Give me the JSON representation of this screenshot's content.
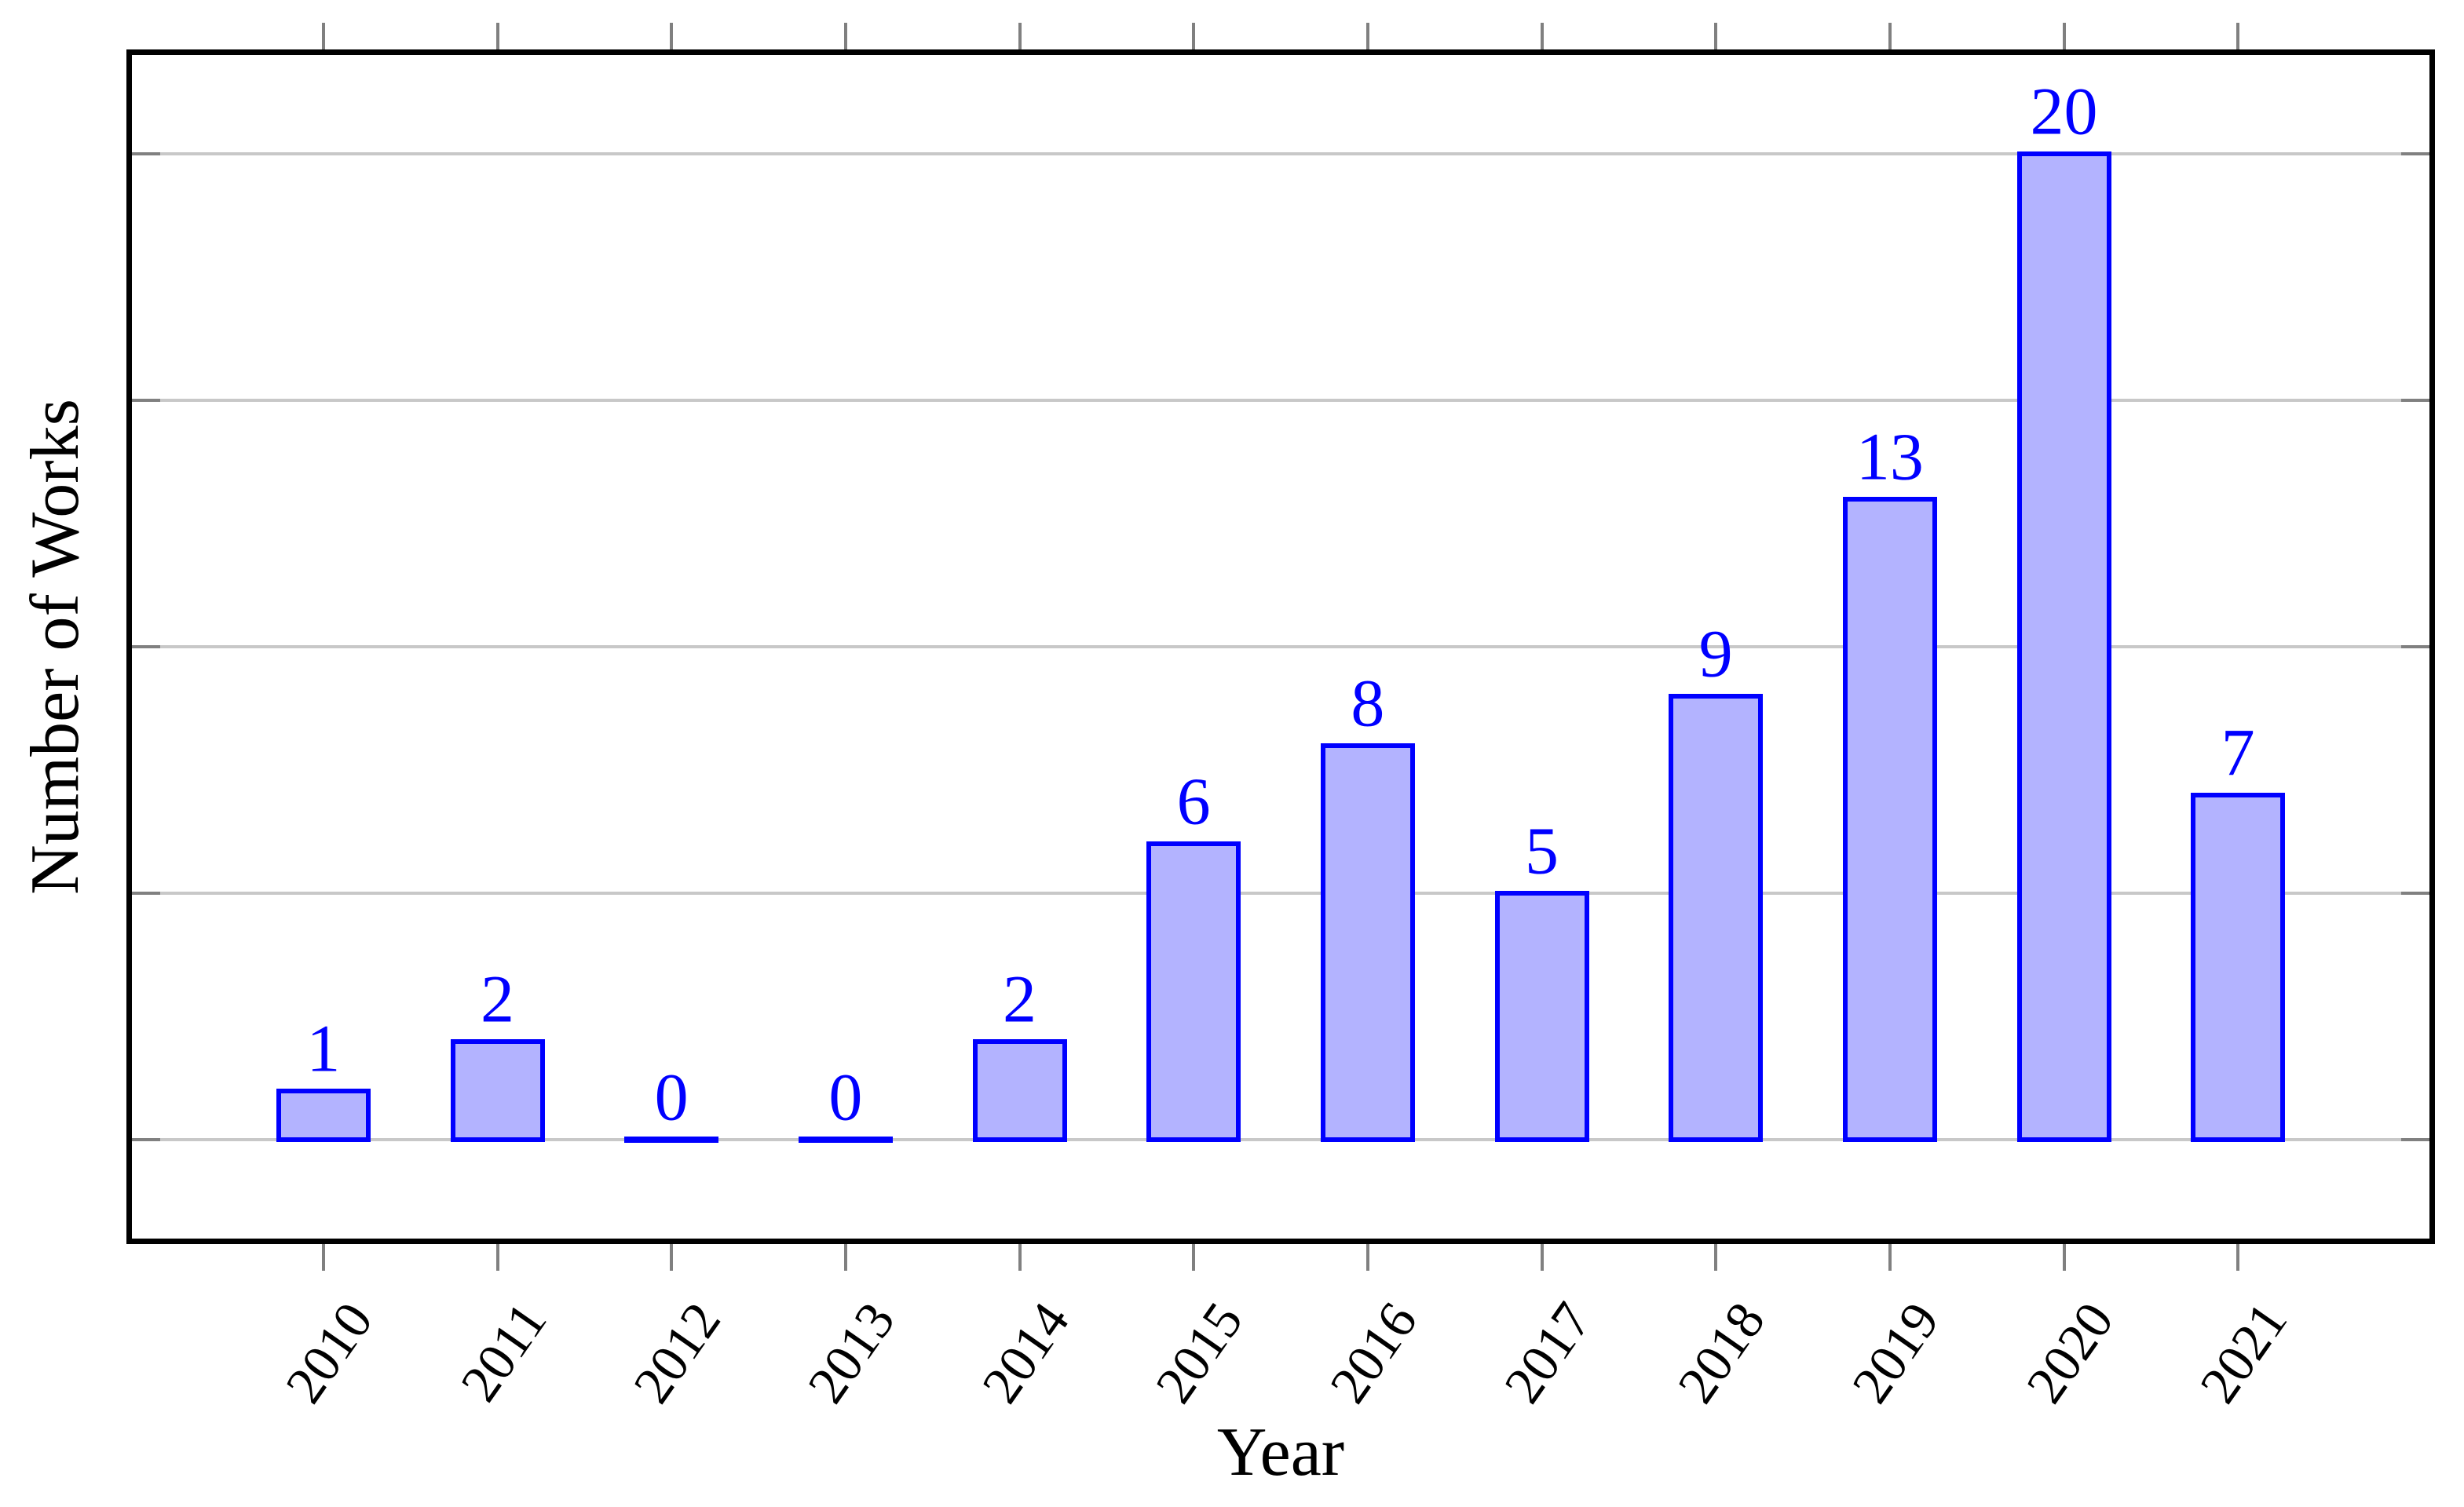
{
  "chart_data": {
    "type": "bar",
    "title": "",
    "xlabel": "Year",
    "ylabel": "Number of Works",
    "categories": [
      "2010",
      "2011",
      "2012",
      "2013",
      "2014",
      "2015",
      "2016",
      "2017",
      "2018",
      "2019",
      "2020",
      "2021"
    ],
    "values": [
      1,
      2,
      0,
      0,
      2,
      6,
      8,
      5,
      9,
      13,
      20,
      7
    ],
    "bar_value_labels": [
      "1",
      "2",
      "0",
      "0",
      "2",
      "6",
      "8",
      "5",
      "9",
      "13",
      "20",
      "7"
    ],
    "ylim": [
      -2,
      22
    ],
    "xlim": [
      -1.1,
      12.1
    ],
    "ytick_gridlines": [
      0,
      5,
      10,
      15,
      20
    ],
    "y_tick_labels_visible": false,
    "grid": "horizontal",
    "legend_position": "none",
    "x_tick_label_rotation_deg": -55,
    "colors": {
      "bar_fill": "#b3b3ff",
      "bar_border": "#0000ff",
      "value_label": "#0000ff",
      "gridline": "#c8c8c8",
      "tick": "#808080",
      "axis_border": "#000000",
      "text": "#000000",
      "background": "#ffffff"
    }
  }
}
